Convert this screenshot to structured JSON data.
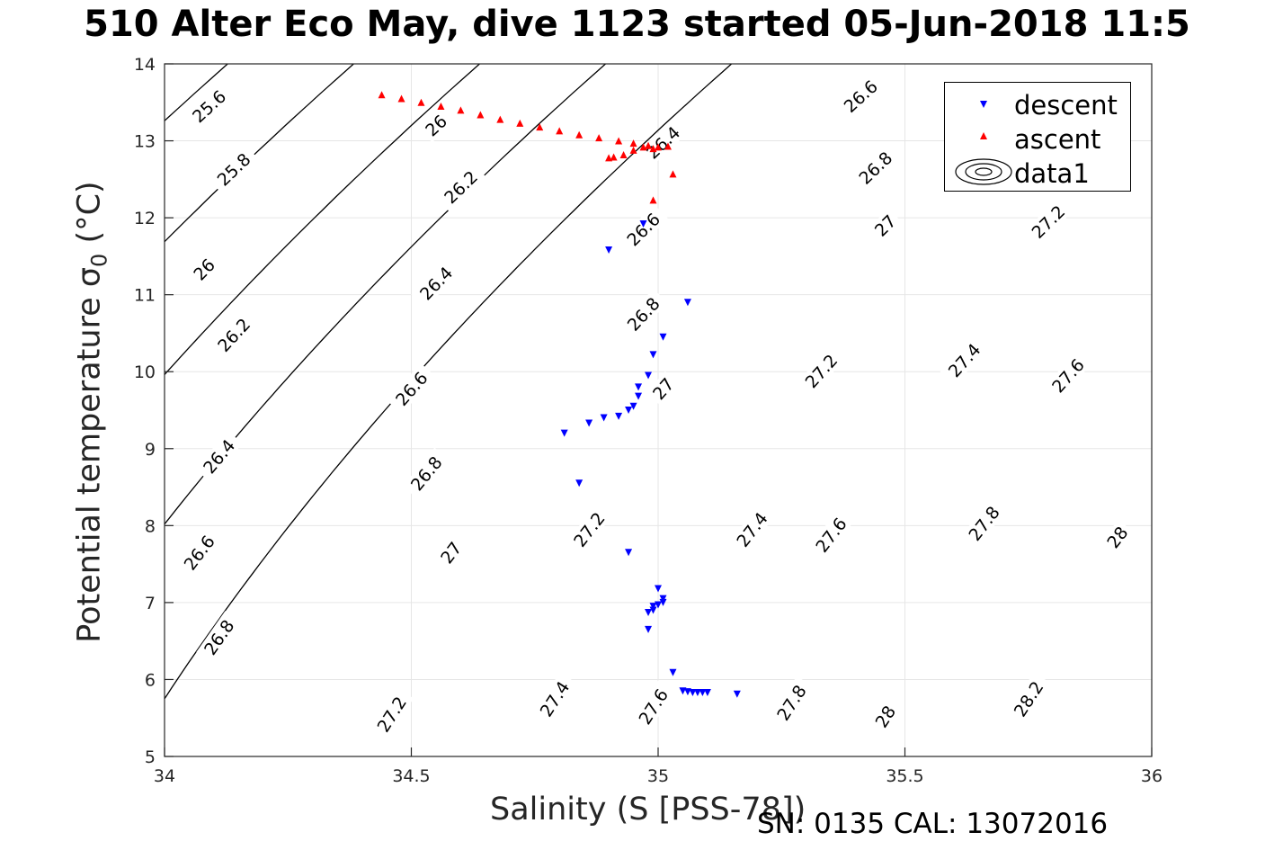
{
  "title": "510 Alter Eco May, dive 1123 started 05-Jun-2018 11:5",
  "footer": "SN: 0135  CAL: 13072016",
  "colors": {
    "descent": "#0000ff",
    "ascent": "#ff0000",
    "contours": "#000000",
    "grid": "#e6e6e6"
  },
  "legend": [
    {
      "label": "descent",
      "symbol": "down-triangle-icon"
    },
    {
      "label": "ascent",
      "symbol": "up-triangle-icon"
    },
    {
      "label": "data1",
      "symbol": "contour-icon"
    }
  ],
  "chart_data": {
    "type": "scatter",
    "xlabel": "Salinity (S [PSS-78])",
    "ylabel_text": "Potential temperature ",
    "ylabel_symbol": "σ",
    "ylabel_sub": "0",
    "ylabel_unit": " (°C)",
    "xlim": [
      34,
      36
    ],
    "ylim": [
      5,
      14
    ],
    "x_ticks": [
      "34",
      "34.5",
      "35",
      "35.5",
      "36"
    ],
    "y_ticks": [
      "5",
      "6",
      "7",
      "8",
      "9",
      "10",
      "11",
      "12",
      "13",
      "14"
    ],
    "grid": true,
    "legend_position": "top-right",
    "contours": {
      "name": "data1",
      "levels": [
        25.6,
        25.8,
        26,
        26.2,
        26.4,
        26.6,
        26.8,
        27,
        27.2,
        27.4,
        27.6,
        27.8,
        28,
        28.2
      ],
      "labels": [
        {
          "text": "25.6",
          "x": 34.09,
          "y": 13.45
        },
        {
          "text": "25.8",
          "x": 34.14,
          "y": 12.63
        },
        {
          "text": "26",
          "x": 34.08,
          "y": 11.33
        },
        {
          "text": "26.2",
          "x": 34.14,
          "y": 10.48
        },
        {
          "text": "26.4",
          "x": 34.11,
          "y": 8.9
        },
        {
          "text": "26.6",
          "x": 34.07,
          "y": 7.65
        },
        {
          "text": "26.8",
          "x": 34.11,
          "y": 6.55
        },
        {
          "text": "26",
          "x": 34.55,
          "y": 13.2
        },
        {
          "text": "26.2",
          "x": 34.6,
          "y": 12.4
        },
        {
          "text": "26.4",
          "x": 34.55,
          "y": 11.15
        },
        {
          "text": "26.6",
          "x": 34.5,
          "y": 9.78
        },
        {
          "text": "26.8",
          "x": 34.53,
          "y": 8.68
        },
        {
          "text": "27",
          "x": 34.58,
          "y": 7.65
        },
        {
          "text": "27.2",
          "x": 34.46,
          "y": 5.55
        },
        {
          "text": "27.4",
          "x": 34.79,
          "y": 5.75
        },
        {
          "text": "27.2",
          "x": 34.86,
          "y": 7.95
        },
        {
          "text": "27",
          "x": 35.01,
          "y": 9.78
        },
        {
          "text": "26.8",
          "x": 34.97,
          "y": 10.75
        },
        {
          "text": "26.6",
          "x": 34.97,
          "y": 11.85
        },
        {
          "text": "26.4",
          "x": 35.01,
          "y": 12.98
        },
        {
          "text": "27.6",
          "x": 34.99,
          "y": 5.65
        },
        {
          "text": "27.4",
          "x": 35.19,
          "y": 7.95
        },
        {
          "text": "27.2",
          "x": 35.33,
          "y": 10.01
        },
        {
          "text": "27",
          "x": 35.46,
          "y": 11.9
        },
        {
          "text": "26.8",
          "x": 35.44,
          "y": 12.65
        },
        {
          "text": "26.6",
          "x": 35.41,
          "y": 13.58
        },
        {
          "text": "27.8",
          "x": 35.27,
          "y": 5.7
        },
        {
          "text": "27.6",
          "x": 35.35,
          "y": 7.88
        },
        {
          "text": "27.4",
          "x": 35.62,
          "y": 10.15
        },
        {
          "text": "27.2",
          "x": 35.79,
          "y": 11.95
        },
        {
          "text": "28",
          "x": 35.46,
          "y": 5.52
        },
        {
          "text": "27.8",
          "x": 35.66,
          "y": 8.03
        },
        {
          "text": "27.6",
          "x": 35.83,
          "y": 9.95
        },
        {
          "text": "28.2",
          "x": 35.75,
          "y": 5.75
        },
        {
          "text": "28",
          "x": 35.93,
          "y": 7.85
        }
      ]
    },
    "series": [
      {
        "name": "descent",
        "marker": "down-triangle",
        "points": [
          [
            34.97,
            11.92
          ],
          [
            34.9,
            11.58
          ],
          [
            35.06,
            10.9
          ],
          [
            35.01,
            10.45
          ],
          [
            34.99,
            10.22
          ],
          [
            34.98,
            9.95
          ],
          [
            34.96,
            9.8
          ],
          [
            34.96,
            9.68
          ],
          [
            34.95,
            9.55
          ],
          [
            34.94,
            9.5
          ],
          [
            34.92,
            9.42
          ],
          [
            34.89,
            9.4
          ],
          [
            34.86,
            9.33
          ],
          [
            34.81,
            9.2
          ],
          [
            34.84,
            8.55
          ],
          [
            34.94,
            7.65
          ],
          [
            35,
            7.18
          ],
          [
            35.01,
            7.05
          ],
          [
            35.01,
            7
          ],
          [
            35,
            6.97
          ],
          [
            34.99,
            6.95
          ],
          [
            34.99,
            6.9
          ],
          [
            34.98,
            6.87
          ],
          [
            34.98,
            6.65
          ],
          [
            35.03,
            6.09
          ],
          [
            35.05,
            5.85
          ],
          [
            35.06,
            5.84
          ],
          [
            35.07,
            5.83
          ],
          [
            35.08,
            5.83
          ],
          [
            35.09,
            5.83
          ],
          [
            35.1,
            5.83
          ],
          [
            35.16,
            5.81
          ]
        ]
      },
      {
        "name": "ascent",
        "marker": "up-triangle",
        "points": [
          [
            34.44,
            13.6
          ],
          [
            34.48,
            13.55
          ],
          [
            34.52,
            13.5
          ],
          [
            34.56,
            13.45
          ],
          [
            34.6,
            13.4
          ],
          [
            34.64,
            13.34
          ],
          [
            34.68,
            13.28
          ],
          [
            34.72,
            13.23
          ],
          [
            34.76,
            13.18
          ],
          [
            34.8,
            13.13
          ],
          [
            34.84,
            13.08
          ],
          [
            34.88,
            13.04
          ],
          [
            34.92,
            13.0
          ],
          [
            34.95,
            12.97
          ],
          [
            34.98,
            12.94
          ],
          [
            35.0,
            12.92
          ],
          [
            35.02,
            12.93
          ],
          [
            34.99,
            12.9
          ],
          [
            34.97,
            12.92
          ],
          [
            34.95,
            12.88
          ],
          [
            34.93,
            12.82
          ],
          [
            34.91,
            12.79
          ],
          [
            34.9,
            12.78
          ],
          [
            35.03,
            12.57
          ],
          [
            34.99,
            12.23
          ]
        ]
      }
    ]
  }
}
